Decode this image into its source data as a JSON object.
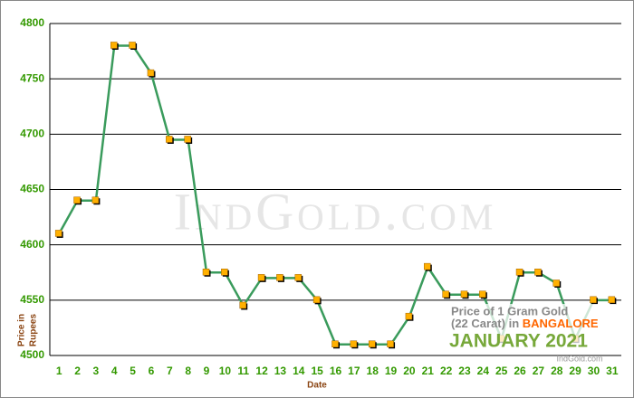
{
  "chart_data": {
    "type": "line",
    "categories": [
      "1",
      "2",
      "3",
      "4",
      "5",
      "6",
      "7",
      "8",
      "9",
      "10",
      "11",
      "12",
      "13",
      "14",
      "15",
      "16",
      "17",
      "18",
      "19",
      "20",
      "21",
      "22",
      "23",
      "24",
      "25",
      "26",
      "27",
      "28",
      "29",
      "30",
      "31"
    ],
    "series": [
      {
        "color": "#3a9b5c",
        "marker_color": "#ffb000",
        "values": [
          4610,
          4640,
          4640,
          4780,
          4780,
          4755,
          4695,
          4695,
          4575,
          4575,
          4545,
          4570,
          4570,
          4570,
          4550,
          4510,
          4510,
          4510,
          4510,
          4535,
          4580,
          4555,
          4555,
          4555,
          4515,
          4575,
          4575,
          4565,
          4515,
          4550,
          4550
        ]
      }
    ],
    "ylim": [
      4500,
      4800
    ],
    "yticks": [
      4500,
      4550,
      4600,
      4650,
      4700,
      4750,
      4800
    ],
    "grid": true,
    "x_label": "Date",
    "y_label_lines": [
      "Price in",
      "Rupees"
    ],
    "watermark": "IndGold.com",
    "annotation": {
      "line1": "Price of 1 Gram Gold",
      "line2": "(22 Carat) in",
      "city": "BANGALORE",
      "period": "JANUARY 2021",
      "credit": "IndGold.com"
    }
  }
}
